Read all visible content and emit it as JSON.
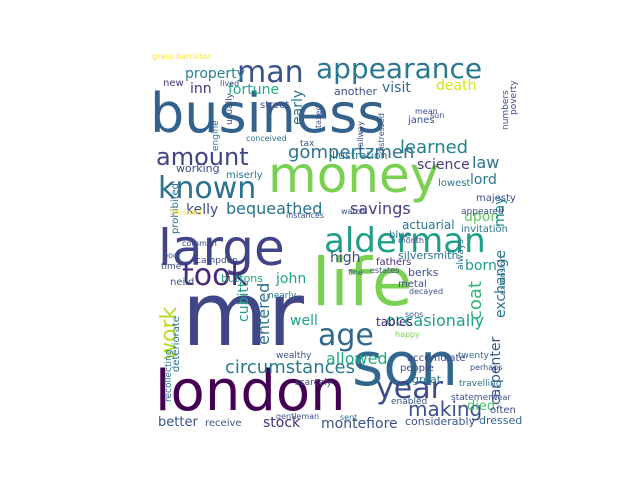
{
  "words": [
    {
      "text": "business",
      "color": "#33638d"
    },
    {
      "text": "mr",
      "color": "#3f4788"
    },
    {
      "text": "london",
      "color": "#440154"
    },
    {
      "text": "money",
      "color": "#7ad151"
    },
    {
      "text": "life",
      "color": "#7ad151"
    },
    {
      "text": "son",
      "color": "#31688e"
    },
    {
      "text": "large",
      "color": "#414487"
    },
    {
      "text": "alderman",
      "color": "#1f9e89"
    },
    {
      "text": "appearance",
      "color": "#2a788e"
    },
    {
      "text": "man",
      "color": "#3b528b"
    },
    {
      "text": "known",
      "color": "#2c728e"
    },
    {
      "text": "amount",
      "color": "#414487"
    },
    {
      "text": "took",
      "color": "#482878"
    },
    {
      "text": "age",
      "color": "#31688e"
    },
    {
      "text": "year",
      "color": "#3e4a89"
    },
    {
      "text": "work",
      "color": "#b5de2b"
    },
    {
      "text": "gompertzmen",
      "color": "#2c728e"
    },
    {
      "text": "learned",
      "color": "#26828e"
    },
    {
      "text": "circumstances",
      "color": "#2a788e"
    },
    {
      "text": "occasionally",
      "color": "#1fa187"
    },
    {
      "text": "making",
      "color": "#3b528b"
    },
    {
      "text": "allowed",
      "color": "#22a884"
    },
    {
      "text": "bequeathed",
      "color": "#2c728e"
    },
    {
      "text": "savings",
      "color": "#433e85"
    },
    {
      "text": "montefiore",
      "color": "#3b528b"
    },
    {
      "text": "stock",
      "color": "#472d7b"
    },
    {
      "text": "entered",
      "color": "#2d708e"
    },
    {
      "text": "property",
      "color": "#26828e"
    },
    {
      "text": "fortune",
      "color": "#22a884"
    },
    {
      "text": "death",
      "color": "#d8e219"
    },
    {
      "text": "coat",
      "color": "#35b779"
    },
    {
      "text": "carpenter",
      "color": "#38588c"
    },
    {
      "text": "cubitt",
      "color": "#1f9e89"
    },
    {
      "text": "exchange",
      "color": "#2c728e"
    },
    {
      "text": "early",
      "color": "#2a788e"
    },
    {
      "text": "inn",
      "color": "#46337e"
    },
    {
      "text": "visit",
      "color": "#31688e"
    },
    {
      "text": "another",
      "color": "#3b528b"
    },
    {
      "text": "new",
      "color": "#46327e"
    },
    {
      "text": "kelly",
      "color": "#3e4a89"
    },
    {
      "text": "john",
      "color": "#20a486"
    },
    {
      "text": "law",
      "color": "#2c728e"
    },
    {
      "text": "lord",
      "color": "#2a788e"
    },
    {
      "text": "science",
      "color": "#443983"
    },
    {
      "text": "upon",
      "color": "#5ec962"
    },
    {
      "text": "may",
      "color": "#228d8d"
    },
    {
      "text": "born",
      "color": "#1f9a8a"
    },
    {
      "text": "well",
      "color": "#1f9e89"
    },
    {
      "text": "tables",
      "color": "#482677"
    },
    {
      "text": "high",
      "color": "#3e4a89"
    },
    {
      "text": "died",
      "color": "#4ac16d"
    },
    {
      "text": "actuarial",
      "color": "#2a788e"
    },
    {
      "text": "better",
      "color": "#39558c"
    },
    {
      "text": "considerably",
      "color": "#3b528b"
    },
    {
      "text": "dressed",
      "color": "#31688e"
    },
    {
      "text": "often",
      "color": "#3e4a89"
    },
    {
      "text": "buttons",
      "color": "#1fa187"
    },
    {
      "text": "great",
      "color": "#2a788e"
    },
    {
      "text": "people",
      "color": "#3e4a89"
    },
    {
      "text": "twenty",
      "color": "#31688e"
    },
    {
      "text": "miserly",
      "color": "#2c728e"
    },
    {
      "text": "working",
      "color": "#3e4a89"
    },
    {
      "text": "illustration",
      "color": "#2a788e"
    },
    {
      "text": "blue",
      "color": "#2d708e"
    },
    {
      "text": "berks",
      "color": "#3b528b"
    },
    {
      "text": "silversmith",
      "color": "#2a788e"
    },
    {
      "text": "fathers",
      "color": "#472d7b"
    },
    {
      "text": "invitation",
      "color": "#2c728e"
    },
    {
      "text": "majesty",
      "color": "#3b528b"
    },
    {
      "text": "lowest",
      "color": "#2c728e"
    },
    {
      "text": "accumulate",
      "color": "#3e4a89"
    },
    {
      "text": "neild",
      "color": "#3b528b"
    },
    {
      "text": "time",
      "color": "#3b528b"
    },
    {
      "text": "prohibited",
      "color": "#2c728e"
    },
    {
      "text": "campden",
      "color": "#3e4a89"
    },
    {
      "text": "street",
      "color": "#3b528b"
    },
    {
      "text": "janes",
      "color": "#3b528b"
    },
    {
      "text": "usually",
      "color": "#3e4a89"
    },
    {
      "text": "tax",
      "color": "#3b528b"
    },
    {
      "text": "wealthy",
      "color": "#3b528b"
    },
    {
      "text": "recollecting",
      "color": "#2c728e"
    },
    {
      "text": "poverty",
      "color": "#3e4a89"
    },
    {
      "text": "receive",
      "color": "#3b528b"
    },
    {
      "text": "statement",
      "color": "#3b528b"
    },
    {
      "text": "nearly",
      "color": "#2c728e"
    },
    {
      "text": "grass barrister",
      "color": "#fde725"
    },
    {
      "text": "engine",
      "color": "#2c728e"
    },
    {
      "text": "railway",
      "color": "#3e4a89"
    },
    {
      "text": "distressed",
      "color": "#3b528b"
    },
    {
      "text": "always",
      "color": "#2c728e"
    },
    {
      "text": "deteriorate",
      "color": "#2c728e"
    },
    {
      "text": "appeared",
      "color": "#3b528b"
    },
    {
      "text": "decayed",
      "color": "#3b528b"
    },
    {
      "text": "metal",
      "color": "#3e4a89"
    },
    {
      "text": "enabled",
      "color": "#3b528b"
    },
    {
      "text": "scarcely",
      "color": "#3e4a89"
    },
    {
      "text": "happy",
      "color": "#7ad151"
    },
    {
      "text": "fine",
      "color": "#3b528b"
    },
    {
      "text": "sent",
      "color": "#2c728e"
    },
    {
      "text": "poor",
      "color": "#3b528b"
    },
    {
      "text": "common",
      "color": "#3e4a89"
    },
    {
      "text": "numbers",
      "color": "#3b528b"
    },
    {
      "text": "conceived",
      "color": "#2c728e"
    },
    {
      "text": "gentleman",
      "color": "#3b528b"
    },
    {
      "text": "watch",
      "color": "#3b528b"
    },
    {
      "text": "month",
      "color": "#3e4a89"
    },
    {
      "text": "extension",
      "color": "#2c728e"
    },
    {
      "text": "estates",
      "color": "#3e4a89"
    },
    {
      "text": "travelling",
      "color": "#2c728e"
    },
    {
      "text": "wear",
      "color": "#3b528b"
    },
    {
      "text": "instances",
      "color": "#3b528b"
    },
    {
      "text": "taxed",
      "color": "#3e4a89"
    },
    {
      "text": "perhaps",
      "color": "#3b528b"
    },
    {
      "text": "mean",
      "color": "#3e4a89"
    },
    {
      "text": "finished",
      "color": "#fde725"
    },
    {
      "text": "sons",
      "color": "#3b528b"
    },
    {
      "text": "sun",
      "color": "#3e4a89"
    },
    {
      "text": "lived",
      "color": "#3b528b"
    }
  ]
}
